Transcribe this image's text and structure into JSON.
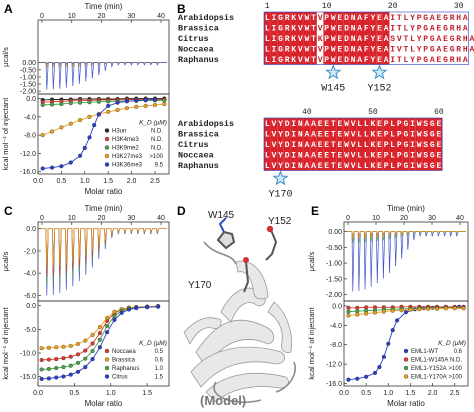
{
  "panels": {
    "A": {
      "letter": "A",
      "top_axis": {
        "label": "Time (min)",
        "ticks": [
          "0",
          "10",
          "20",
          "30",
          "40"
        ]
      },
      "top_ylabel": "μcal/s",
      "top_yticks": [
        "0.00",
        "-0.50",
        "-1.00",
        "-1.50",
        "-2.00"
      ],
      "bottom_ylabel": "kcal mol⁻¹ of injectant",
      "bottom_yticks": [
        "0.0",
        "-4.0",
        "-8.0",
        "-12.0",
        "-16.0"
      ],
      "xlabel": "Molar ratio",
      "xticks": [
        "0.0",
        "0.5",
        "1.0",
        "1.5",
        "2.0",
        "2.5"
      ],
      "legend_header": "K_D (μM)",
      "legend": [
        {
          "name": "H3un",
          "kd": "N.D.",
          "color": "#2a2a2a"
        },
        {
          "name": "H3K4me3",
          "kd": "N.D.",
          "color": "#e23a2a"
        },
        {
          "name": "H3K9me2",
          "kd": "N.D.",
          "color": "#4aa34a"
        },
        {
          "name": "H3K27me3",
          "kd": ">100",
          "color": "#e8a020"
        },
        {
          "name": "H3K36me3",
          "kd": "9.5",
          "color": "#2b3fc8"
        }
      ]
    },
    "B": {
      "letter": "B",
      "species": [
        "Arabidopsis",
        "Brassica",
        "Citrus",
        "Noccaea",
        "Raphanus"
      ],
      "block1": {
        "numbers": [
          "1",
          "10",
          "20",
          "30"
        ],
        "rows": [
          "LIGRKVWTVPWEDNAFYEAITLYPGAEGRHA",
          "LIGRKVWTVPWEDNAFYEAITLYPGAEGRHA",
          "LIGRKVWTKPWEDNAFYEASVTLYPGAEGRHA",
          "LIGRKVWTVPWEDNAFYEAIVTLYPGAEGRHA",
          "LIGRKVWTVPWEDNAFYEAITLYPGAEGRHA"
        ],
        "stars": [
          "W145",
          "Y152"
        ]
      },
      "block2": {
        "numbers": [
          "40",
          "50",
          "60"
        ],
        "rows": [
          "LVYDINAAEETEWVLLKEPLPGIWSGE",
          "LVYDINAAEETEWVLLKEPLPGIWSGE",
          "LVYDINAAEETEWVLLKEPLPGIWSGE",
          "LVYDINAAEETEWVLLKEPLPGIWSGE",
          "LVYDINAAEETEWVLLKEPLPGIWSGE"
        ],
        "stars": [
          "Y170"
        ]
      }
    },
    "C": {
      "letter": "C",
      "top_axis": {
        "label": "Time (min)",
        "ticks": [
          "0",
          "10",
          "20",
          "30",
          "40"
        ]
      },
      "top_ylabel": "μcal/s",
      "top_yticks": [
        "0.0",
        "-2.0",
        "-4.0",
        "-6.0"
      ],
      "bottom_ylabel": "kcal mol⁻¹ of injectant",
      "bottom_yticks": [
        "0.0",
        "-5.0",
        "-10.0",
        "-15.0"
      ],
      "xlabel": "Molar ratio",
      "xticks": [
        "0.0",
        "0.5",
        "1.0",
        "1.5"
      ],
      "legend_header": "K_D (μM)",
      "legend": [
        {
          "name": "Noccaea",
          "kd": "0.5",
          "color": "#e23a2a"
        },
        {
          "name": "Brassica",
          "kd": "0.6",
          "color": "#e8a020"
        },
        {
          "name": "Raphanus",
          "kd": "1.0",
          "color": "#4aa34a"
        },
        {
          "name": "Citrus",
          "kd": "1.5",
          "color": "#2b3fc8"
        }
      ]
    },
    "D": {
      "letter": "D",
      "labels": {
        "w145": "W145",
        "y152": "Y152",
        "y170": "Y170",
        "model": "(Model)"
      }
    },
    "E": {
      "letter": "E",
      "top_axis": {
        "label": "Time (min)",
        "ticks": [
          "0",
          "10",
          "20",
          "30",
          "40"
        ]
      },
      "top_ylabel": "μcal/s",
      "top_yticks": [
        "0.00",
        "-0.50",
        "-1.00",
        "-1.50",
        "-2.00"
      ],
      "bottom_ylabel": "kcal mol⁻¹ of injectant",
      "bottom_yticks": [
        "0.0",
        "-4.0",
        "-8.0",
        "-12.0",
        "-16.0"
      ],
      "xlabel": "Molar ratio",
      "xticks": [
        "0.0",
        "0.5",
        "1.0",
        "1.5",
        "2.0",
        "2.5"
      ],
      "legend_header": "K_D (μM)",
      "legend": [
        {
          "name": "EML1-WT",
          "kd": "0.6",
          "color": "#2b3fc8"
        },
        {
          "name": "EML1-W145A",
          "kd": "N.D.",
          "color": "#e23a2a"
        },
        {
          "name": "EML1-Y152A",
          "kd": ">100",
          "color": "#4aa34a"
        },
        {
          "name": "EML1-Y170A",
          "kd": ">100",
          "color": "#e8a020"
        }
      ]
    }
  },
  "chart_data": [
    {
      "type": "scatter",
      "panel": "A",
      "xlabel": "Molar ratio",
      "ylabel": "kcal mol⁻¹ of injectant",
      "xlim": [
        0,
        2.8
      ],
      "ylim": [
        -16.5,
        1
      ],
      "series": [
        {
          "name": "H3un",
          "x": [
            0.1,
            0.3,
            0.5,
            0.7,
            0.9,
            1.1,
            1.3,
            1.5,
            1.7,
            1.9,
            2.1,
            2.3,
            2.5,
            2.7
          ],
          "y": [
            -0.3,
            -0.2,
            -0.2,
            -0.2,
            -0.1,
            -0.1,
            -0.1,
            -0.1,
            -0.1,
            0,
            0,
            0,
            0,
            0
          ]
        },
        {
          "name": "H3K4me3",
          "x": [
            0.1,
            0.3,
            0.5,
            0.7,
            0.9,
            1.1,
            1.3,
            1.5,
            1.7,
            1.9,
            2.1,
            2.3,
            2.5,
            2.7
          ],
          "y": [
            -0.8,
            -0.7,
            -0.6,
            -0.5,
            -0.4,
            -0.4,
            -0.3,
            -0.3,
            -0.3,
            -0.2,
            -0.2,
            -0.2,
            -0.2,
            -0.2
          ]
        },
        {
          "name": "H3K9me2",
          "x": [
            0.1,
            0.3,
            0.5,
            0.7,
            0.9,
            1.1,
            1.3,
            1.5,
            1.7,
            1.9,
            2.1,
            2.3,
            2.5,
            2.7
          ],
          "y": [
            -1.4,
            -1.3,
            -1.2,
            -1.0,
            -0.9,
            -0.8,
            -0.7,
            -0.6,
            -0.6,
            -0.5,
            -0.5,
            -0.4,
            -0.4,
            -0.4
          ]
        },
        {
          "name": "H3K27me3",
          "x": [
            0.1,
            0.3,
            0.5,
            0.7,
            0.9,
            1.1,
            1.3,
            1.5,
            1.7,
            1.9,
            2.1,
            2.3,
            2.5,
            2.7
          ],
          "y": [
            -8.0,
            -7.2,
            -6.3,
            -5.5,
            -4.7,
            -4.0,
            -3.4,
            -2.9,
            -2.5,
            -2.1,
            -1.8,
            -1.6,
            -1.4,
            -1.2
          ]
        },
        {
          "name": "H3K36me3",
          "x": [
            0.1,
            0.3,
            0.5,
            0.7,
            0.9,
            1.0,
            1.1,
            1.2,
            1.3,
            1.5,
            1.7,
            1.9,
            2.1,
            2.3,
            2.5
          ],
          "y": [
            -15.3,
            -15.1,
            -14.8,
            -14.0,
            -12.5,
            -10.8,
            -8.5,
            -5.8,
            -3.5,
            -1.6,
            -0.9,
            -0.6,
            -0.4,
            -0.3,
            -0.2
          ]
        }
      ]
    },
    {
      "type": "scatter",
      "panel": "C",
      "xlabel": "Molar ratio",
      "ylabel": "kcal mol⁻¹ of injectant",
      "xlim": [
        0,
        1.8
      ],
      "ylim": [
        -17,
        1
      ],
      "series": [
        {
          "name": "Noccaea",
          "x": [
            0.05,
            0.15,
            0.25,
            0.35,
            0.45,
            0.55,
            0.65,
            0.75,
            0.85,
            0.95,
            1.05,
            1.15,
            1.25,
            1.35,
            1.5,
            1.65
          ],
          "y": [
            -11.5,
            -11.4,
            -11.3,
            -11.1,
            -10.8,
            -10.3,
            -9.5,
            -8.0,
            -5.8,
            -3.2,
            -1.6,
            -0.8,
            -0.5,
            -0.3,
            -0.2,
            -0.1
          ]
        },
        {
          "name": "Brassica",
          "x": [
            0.05,
            0.15,
            0.25,
            0.35,
            0.45,
            0.55,
            0.65,
            0.75,
            0.85,
            0.95,
            1.05,
            1.15,
            1.25,
            1.35,
            1.5,
            1.65
          ],
          "y": [
            -9.0,
            -8.9,
            -8.8,
            -8.7,
            -8.5,
            -8.1,
            -7.4,
            -6.2,
            -4.5,
            -2.6,
            -1.3,
            -0.7,
            -0.4,
            -0.3,
            -0.2,
            -0.1
          ]
        },
        {
          "name": "Raphanus",
          "x": [
            0.05,
            0.15,
            0.25,
            0.35,
            0.45,
            0.55,
            0.65,
            0.75,
            0.85,
            0.95,
            1.05,
            1.15,
            1.25,
            1.35,
            1.5,
            1.65
          ],
          "y": [
            -13.5,
            -13.4,
            -13.2,
            -13.0,
            -12.7,
            -12.1,
            -11.2,
            -9.6,
            -7.2,
            -4.3,
            -2.2,
            -1.1,
            -0.6,
            -0.4,
            -0.3,
            -0.2
          ]
        },
        {
          "name": "Citrus",
          "x": [
            0.05,
            0.15,
            0.25,
            0.35,
            0.45,
            0.55,
            0.65,
            0.75,
            0.85,
            0.95,
            1.05,
            1.15,
            1.25,
            1.35,
            1.5,
            1.65
          ],
          "y": [
            -15.5,
            -15.4,
            -15.2,
            -15.0,
            -14.6,
            -14.0,
            -13.0,
            -11.3,
            -8.8,
            -5.6,
            -3.0,
            -1.5,
            -0.8,
            -0.5,
            -0.3,
            -0.2
          ]
        }
      ]
    },
    {
      "type": "scatter",
      "panel": "E",
      "xlabel": "Molar ratio",
      "ylabel": "kcal mol⁻¹ of injectant",
      "xlim": [
        0,
        2.8
      ],
      "ylim": [
        -16.5,
        1
      ],
      "series": [
        {
          "name": "EML1-WT",
          "x": [
            0.1,
            0.3,
            0.5,
            0.7,
            0.8,
            0.9,
            1.0,
            1.1,
            1.2,
            1.4,
            1.6,
            1.8,
            2.0,
            2.3,
            2.6
          ],
          "y": [
            -15.2,
            -15.0,
            -14.6,
            -13.8,
            -12.6,
            -10.5,
            -7.8,
            -5.0,
            -3.0,
            -1.3,
            -0.7,
            -0.5,
            -0.4,
            -0.3,
            -0.2
          ]
        },
        {
          "name": "EML1-W145A",
          "x": [
            0.1,
            0.3,
            0.5,
            0.7,
            0.9,
            1.1,
            1.3,
            1.5,
            1.7,
            1.9,
            2.1,
            2.3,
            2.5,
            2.7
          ],
          "y": [
            -0.4,
            -0.4,
            -0.3,
            -0.3,
            -0.3,
            -0.3,
            -0.2,
            -0.2,
            -0.2,
            -0.2,
            -0.2,
            -0.2,
            -0.2,
            -0.2
          ]
        },
        {
          "name": "EML1-Y152A",
          "x": [
            0.1,
            0.3,
            0.5,
            0.7,
            0.9,
            1.1,
            1.3,
            1.5,
            1.7,
            1.9,
            2.1,
            2.3,
            2.5,
            2.7
          ],
          "y": [
            -1.2,
            -1.1,
            -1.0,
            -0.9,
            -0.8,
            -0.7,
            -0.6,
            -0.6,
            -0.5,
            -0.5,
            -0.4,
            -0.4,
            -0.4,
            -0.4
          ]
        },
        {
          "name": "EML1-Y170A",
          "x": [
            0.1,
            0.3,
            0.5,
            0.7,
            0.9,
            1.1,
            1.3,
            1.5,
            1.7,
            1.9,
            2.1,
            2.3,
            2.5,
            2.7
          ],
          "y": [
            -2.0,
            -1.8,
            -1.6,
            -1.4,
            -1.2,
            -1.0,
            -0.9,
            -0.8,
            -0.7,
            -0.6,
            -0.6,
            -0.5,
            -0.5,
            -0.5
          ]
        }
      ]
    }
  ]
}
